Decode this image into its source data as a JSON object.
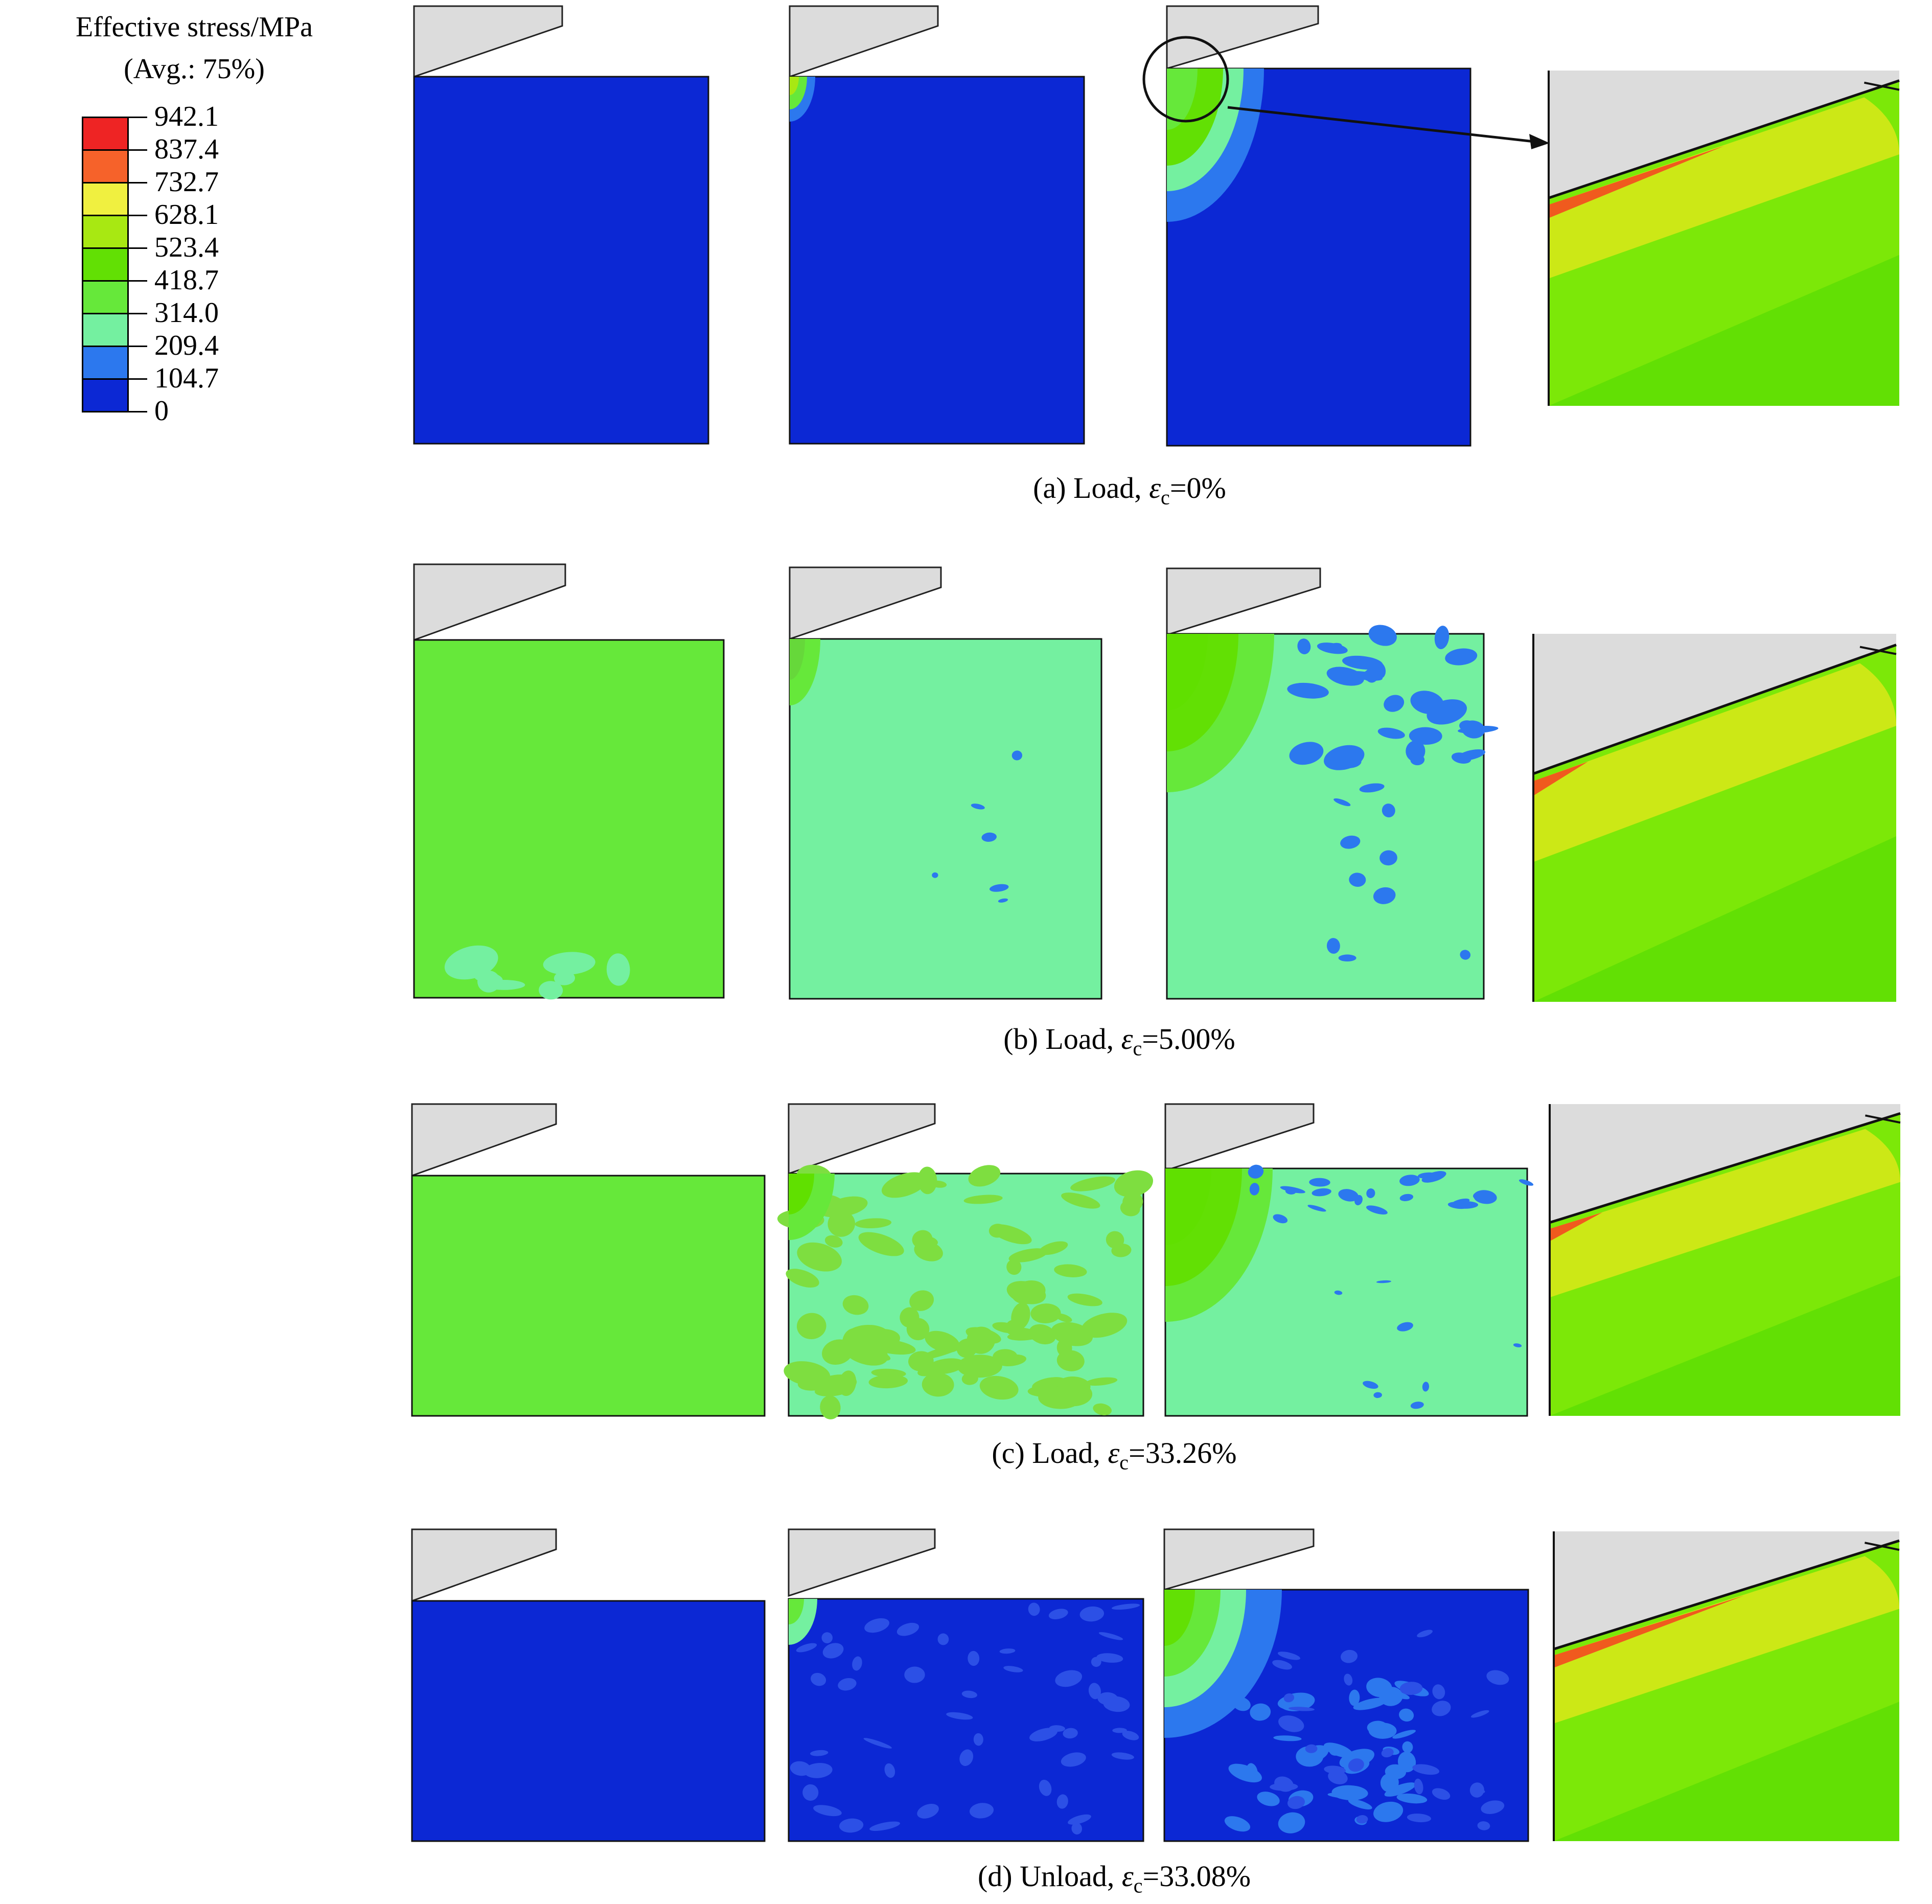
{
  "legend": {
    "title": "Effective stress/MPa",
    "subtitle": "(Avg.: 75%)",
    "levels": [
      {
        "label": "942.1",
        "color": "#ee2424"
      },
      {
        "label": "837.4",
        "color": "#f6622a"
      },
      {
        "label": "732.7",
        "color": "#f0f040"
      },
      {
        "label": "628.1",
        "color": "#a8e812"
      },
      {
        "label": "523.4",
        "color": "#62e004"
      },
      {
        "label": "418.7",
        "color": "#66e83a"
      },
      {
        "label": "314.0",
        "color": "#74f0a0"
      },
      {
        "label": "209.4",
        "color": "#2c78ee"
      },
      {
        "label": "104.7",
        "color": "#0c28d4"
      },
      {
        "label": "0",
        "color": ""
      }
    ]
  },
  "panels": [
    {
      "caption_prefix": "(a) Load, ",
      "symbol": "ε",
      "subscript": "c",
      "value": "=0%"
    },
    {
      "caption_prefix": "(b) Load, ",
      "symbol": "ε",
      "subscript": "c",
      "value": "=5.00%"
    },
    {
      "caption_prefix": "(c) Load, ",
      "symbol": "ε",
      "subscript": "c",
      "value": "=33.26%"
    },
    {
      "caption_prefix": "(d) Unload, ",
      "symbol": "ε",
      "subscript": "c",
      "value": "=33.08%"
    }
  ],
  "colors": {
    "tool": "#dcdcdc",
    "background_low": "#0c28d4",
    "green": "#66e83a",
    "cyan": "#74f0a0",
    "lime": "#7ce808",
    "yellow": "#cce816",
    "orange": "#f05a1e"
  }
}
